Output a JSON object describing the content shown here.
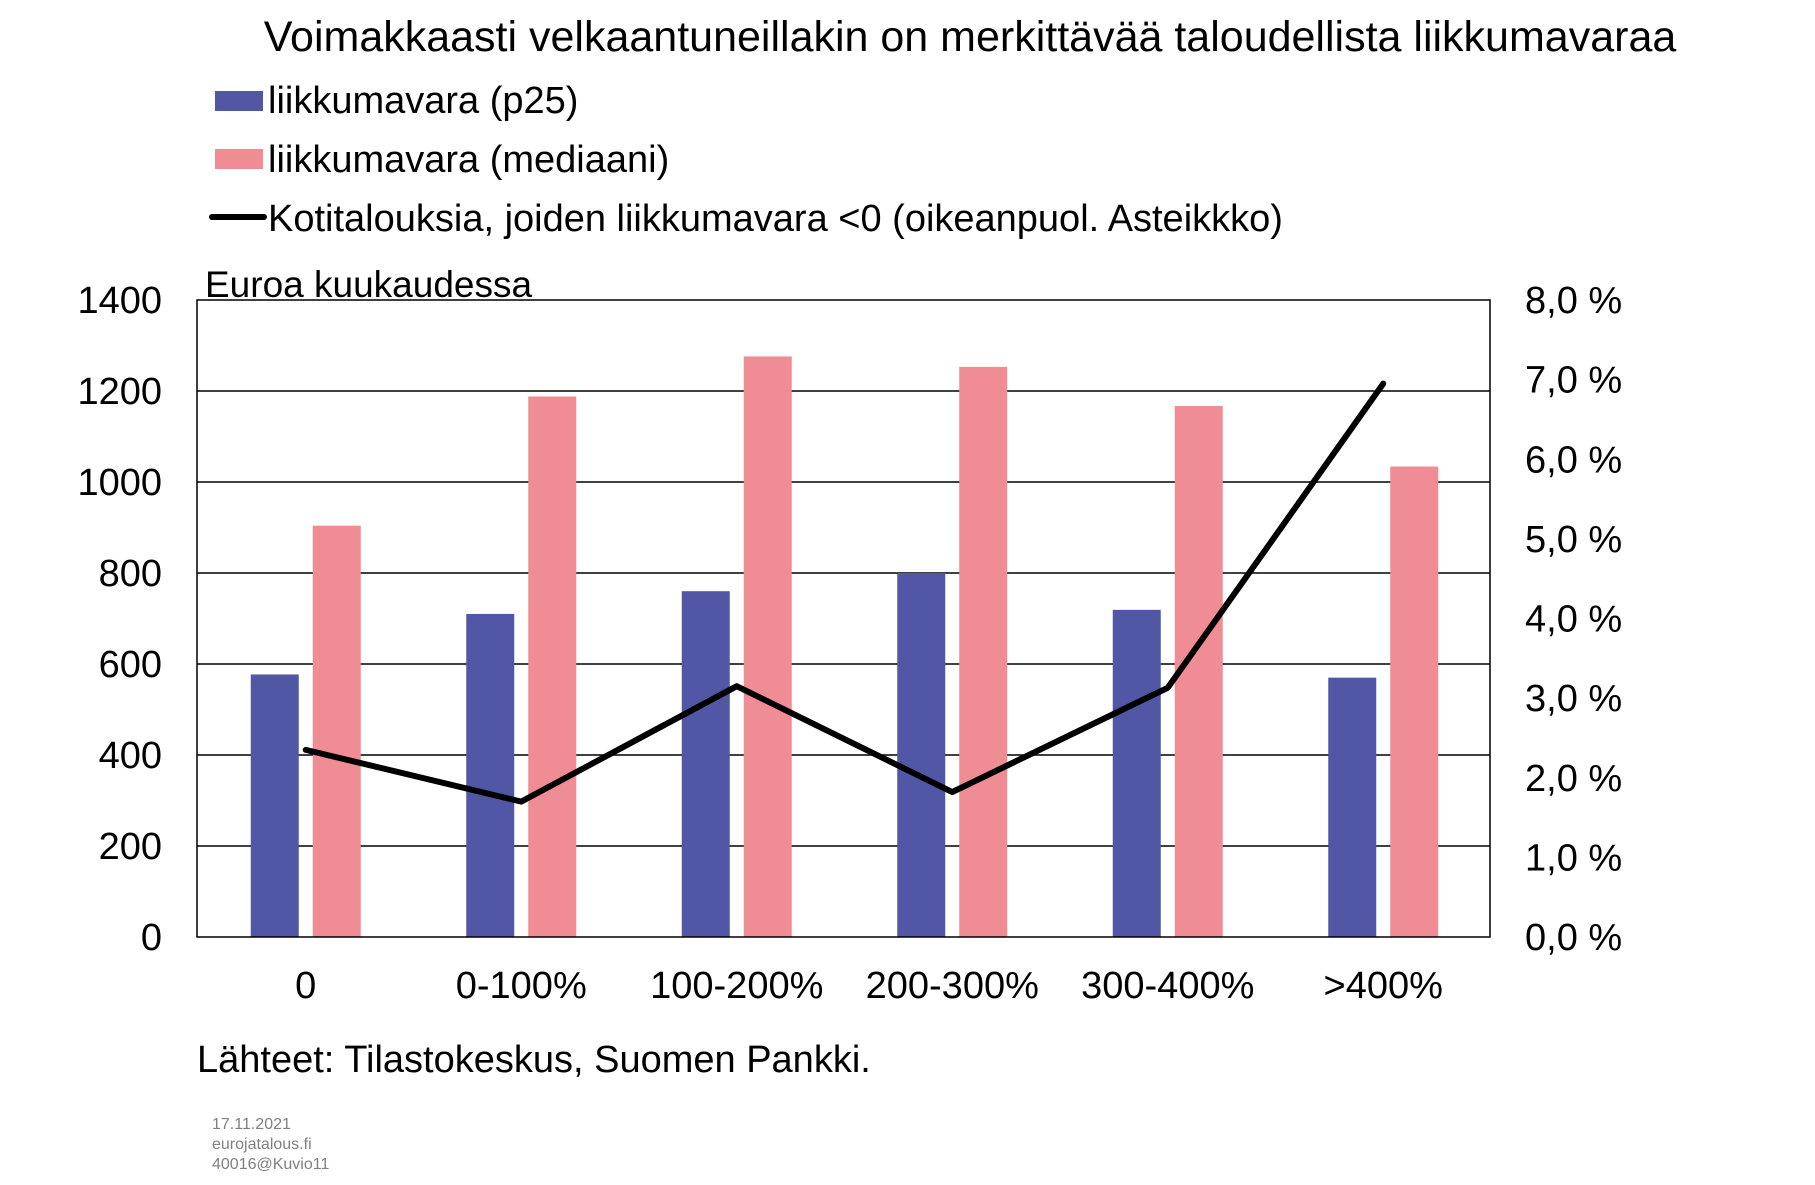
{
  "chart_data": {
    "type": "bar",
    "title": "Voimakkaasti velkaantuneillakin on merkittävää taloudellista liikkumavaraa",
    "ylabel": "Euroa kuukaudessa",
    "y2label": "",
    "categories": [
      "0",
      "0-100%",
      "100-200%",
      "200-300%",
      "300-400%",
      ">400%"
    ],
    "series": [
      {
        "name": "liikkumavara (p25)",
        "type": "bar",
        "axis": "left",
        "color": "#5157a5",
        "values": [
          577,
          710,
          760,
          800,
          719,
          570
        ]
      },
      {
        "name": "liikkumavara (mediaani)",
        "type": "bar",
        "axis": "left",
        "color": "#f08c93",
        "values": [
          904,
          1188,
          1276,
          1253,
          1167,
          1034
        ]
      },
      {
        "name": "Kotitalouksia, joiden liikkumavara <0 (oikeanpuol. Asteikkko)",
        "type": "line",
        "axis": "right",
        "color": "#000000",
        "values": [
          2.35,
          1.7,
          3.15,
          1.82,
          3.13,
          6.95
        ]
      }
    ],
    "ylim": [
      0,
      1400
    ],
    "y_ticks": [
      "0",
      "200",
      "400",
      "600",
      "800",
      "1000",
      "1200",
      "1400"
    ],
    "y2lim": [
      0,
      8
    ],
    "y2_ticks": [
      "0,0 %",
      "1,0 %",
      "2,0 %",
      "3,0 %",
      "4,0 %",
      "5,0 %",
      "6,0 %",
      "7,0 %",
      "8,0 %"
    ],
    "grid": true,
    "legend_position": "top-left"
  },
  "source": "Lähteet: Tilastokeskus,  Suomen Pankki.",
  "footer": {
    "date": "17.11.2021",
    "site": "eurojatalous.fi",
    "code": "40016@Kuvio11"
  }
}
